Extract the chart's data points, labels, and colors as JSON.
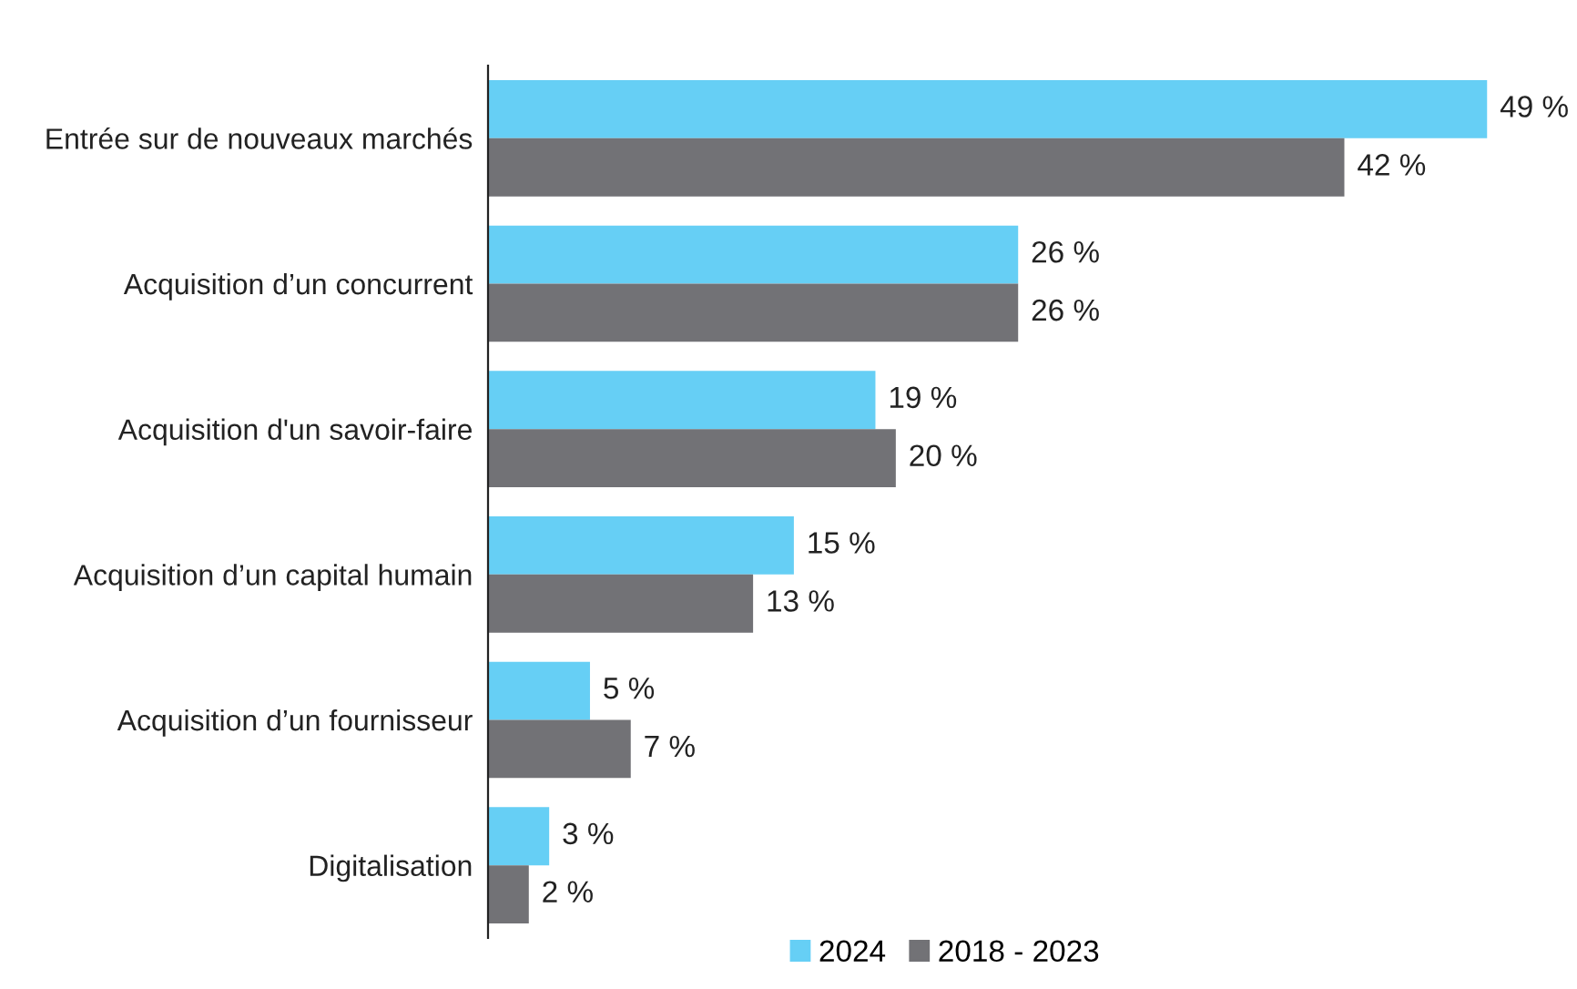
{
  "chart_data": {
    "type": "bar",
    "orientation": "horizontal",
    "categories": [
      "Entrée sur de nouveaux marchés",
      "Acquisition d’un concurrent",
      "Acquisition d'un savoir-faire",
      "Acquisition d’un capital humain",
      "Acquisition d’un fournisseur",
      "Digitalisation"
    ],
    "series": [
      {
        "name": "2024",
        "color": "#66cff5",
        "values": [
          49,
          26,
          19,
          15,
          5,
          3
        ],
        "value_labels": [
          "49 %",
          "26 %",
          "19 %",
          "15 %",
          "5 %",
          "3 %"
        ]
      },
      {
        "name": "2018 - 2023",
        "color": "#727276",
        "values": [
          42,
          26,
          20,
          13,
          7,
          2
        ],
        "value_labels": [
          "42 %",
          "26 %",
          "20 %",
          "13 %",
          "7 %",
          "2 %"
        ]
      }
    ],
    "legend": "bottom",
    "grid": false
  }
}
